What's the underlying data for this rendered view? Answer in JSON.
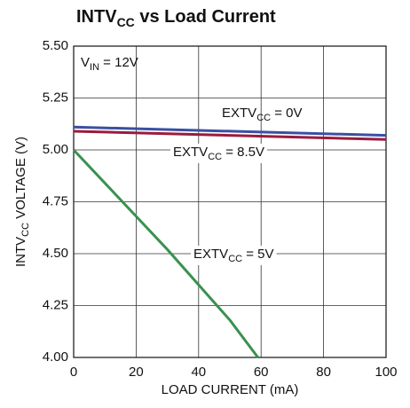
{
  "chart_data": {
    "type": "line",
    "title": [
      "INTV",
      "CC",
      " vs Load Current"
    ],
    "annotation": [
      "V",
      "IN",
      " = 12V"
    ],
    "xlabel": "LOAD CURRENT (mA)",
    "ylabel": [
      "INTV",
      "CC",
      " VOLTAGE (V)"
    ],
    "xlim": [
      0,
      100
    ],
    "xticks": [
      0,
      20,
      40,
      60,
      80,
      100
    ],
    "ylim": [
      4.0,
      5.5
    ],
    "yticks": [
      {
        "value": 4.0,
        "label": "4.00"
      },
      {
        "value": 4.25,
        "label": "4.25"
      },
      {
        "value": 4.5,
        "label": "4.50"
      },
      {
        "value": 4.75,
        "label": "4.75"
      },
      {
        "value": 5.0,
        "label": "5.00"
      },
      {
        "value": 5.25,
        "label": "5.25"
      },
      {
        "value": 5.5,
        "label": "5.50"
      }
    ],
    "grid": true,
    "series": [
      {
        "name": [
          "EXTV",
          "CC",
          " = 0V"
        ],
        "color": "#3b4fa3",
        "x": [
          0,
          100
        ],
        "values": [
          5.11,
          5.07
        ]
      },
      {
        "name": [
          "EXTV",
          "CC",
          " = 8.5V"
        ],
        "color": "#9b1b3c",
        "x": [
          0,
          100
        ],
        "values": [
          5.09,
          5.05
        ]
      },
      {
        "name": [
          "EXTV",
          "CC",
          " = 5V"
        ],
        "color": "#3a9150",
        "x": [
          0,
          10,
          20,
          30,
          40,
          50,
          59
        ],
        "values": [
          5.0,
          4.84,
          4.68,
          4.52,
          4.35,
          4.18,
          4.0
        ]
      }
    ]
  }
}
